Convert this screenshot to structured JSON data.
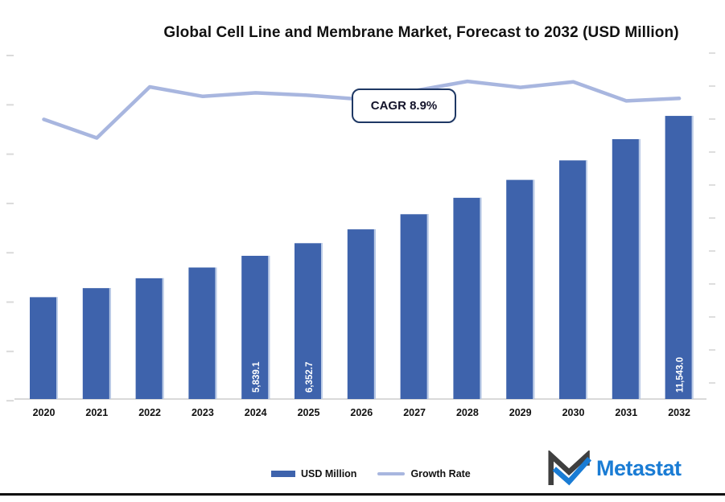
{
  "page": {
    "title": "Global Cell Line and Membrane Market, Forecast to 2032 (USD Million)"
  },
  "annotation": {
    "cagr_label": "CAGR 8.9%"
  },
  "legend": [
    {
      "label": "USD Million",
      "type": "bar",
      "color": "#3e63ac"
    },
    {
      "label": "Growth Rate",
      "type": "line",
      "color": "#a8b6df"
    }
  ],
  "branding": {
    "logo_text": "Metastat",
    "logo_color": "#1a7cd4",
    "logo_dark": "#3f3f3f"
  },
  "colors": {
    "bar": "#3e63ac",
    "bar_edge": "#ccd9ee",
    "line": "#a8b6df",
    "baseline": "#d9d9d9",
    "cagr_border": "#1f3864"
  },
  "chart_data": {
    "type": "bar",
    "title": "Global Cell Line and Membrane Market, Forecast to 2032 (USD Million)",
    "xlabel": "",
    "ylabel": "USD Million",
    "categories": [
      "2020",
      "2021",
      "2022",
      "2023",
      "2024",
      "2025",
      "2026",
      "2027",
      "2028",
      "2029",
      "2030",
      "2031",
      "2032"
    ],
    "series": [
      {
        "name": "USD Million",
        "type": "bar",
        "axis": "left",
        "color": "#3e63ac",
        "values": [
          4152,
          4521,
          4924,
          5362,
          5839.1,
          6352.7,
          6918,
          7534,
          8204,
          8934,
          9729,
          10595,
          11543.0
        ]
      },
      {
        "name": "Growth Rate",
        "type": "line",
        "axis": "right",
        "color": "#a8b6df",
        "values": [
          8.58,
          8.21,
          9.23,
          9.04,
          9.11,
          9.06,
          8.98,
          9.15,
          9.34,
          9.22,
          9.33,
          8.95,
          9.0
        ]
      }
    ],
    "bar_labels": {
      "2024": "5,839.1",
      "2025": "6,352.7",
      "2032": "11,543.0"
    },
    "annotation": "CAGR 8.9%",
    "ylim_left": [
      0,
      14300
    ],
    "ylim_right": [
      3,
      10
    ],
    "grid": false,
    "legend_position": "bottom",
    "axis_tick_labels": "present but illegible (rendered as faint marks)",
    "left_tick_count": 8,
    "right_tick_count": 11,
    "note": "Only the 2024, 2025 and 2032 bars carry visible data labels; remaining values and growth-rate percentages are estimated from pixel heights."
  }
}
